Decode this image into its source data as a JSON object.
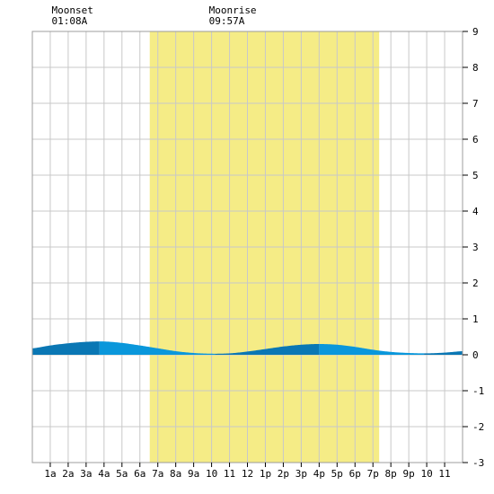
{
  "chart_data": {
    "type": "area",
    "title": "",
    "xlabel": "",
    "ylabel": "",
    "x_tick_labels": [
      "1a",
      "2a",
      "3a",
      "4a",
      "5a",
      "6a",
      "7a",
      "8a",
      "9a",
      "10",
      "11",
      "12",
      "1p",
      "2p",
      "3p",
      "4p",
      "5p",
      "6p",
      "7p",
      "8p",
      "9p",
      "10",
      "11"
    ],
    "ylim": [
      -3,
      9
    ],
    "y_ticks": [
      9,
      8,
      7,
      6,
      5,
      4,
      3,
      2,
      1,
      0,
      -1,
      -2,
      -3
    ],
    "xlim_hours": [
      0,
      24
    ],
    "grid": true,
    "daylight_window_hours": [
      6.55,
      19.35
    ],
    "annotations": [
      {
        "label": "Moonset",
        "time": "01:08A",
        "hour": 1.13
      },
      {
        "label": "Moonrise",
        "time": "09:57A",
        "hour": 9.95
      }
    ],
    "series": [
      {
        "x": [
          0,
          1,
          2,
          3,
          4,
          5,
          6,
          7,
          8,
          9,
          10,
          11,
          12,
          13,
          14,
          15,
          16,
          17,
          18,
          19,
          20,
          21,
          22,
          23,
          24
        ],
        "y": [
          0.18,
          0.26,
          0.32,
          0.36,
          0.37,
          0.33,
          0.26,
          0.18,
          0.1,
          0.05,
          0.03,
          0.04,
          0.09,
          0.16,
          0.23,
          0.28,
          0.3,
          0.28,
          0.22,
          0.14,
          0.08,
          0.05,
          0.04,
          0.06,
          0.1
        ]
      }
    ],
    "colors": {
      "daylight": "#f5ec86",
      "tide_rising": "#0a77b4",
      "tide_falling": "#0a97db",
      "grid": "#c8c8c8",
      "frame": "#9c9c9c"
    }
  }
}
